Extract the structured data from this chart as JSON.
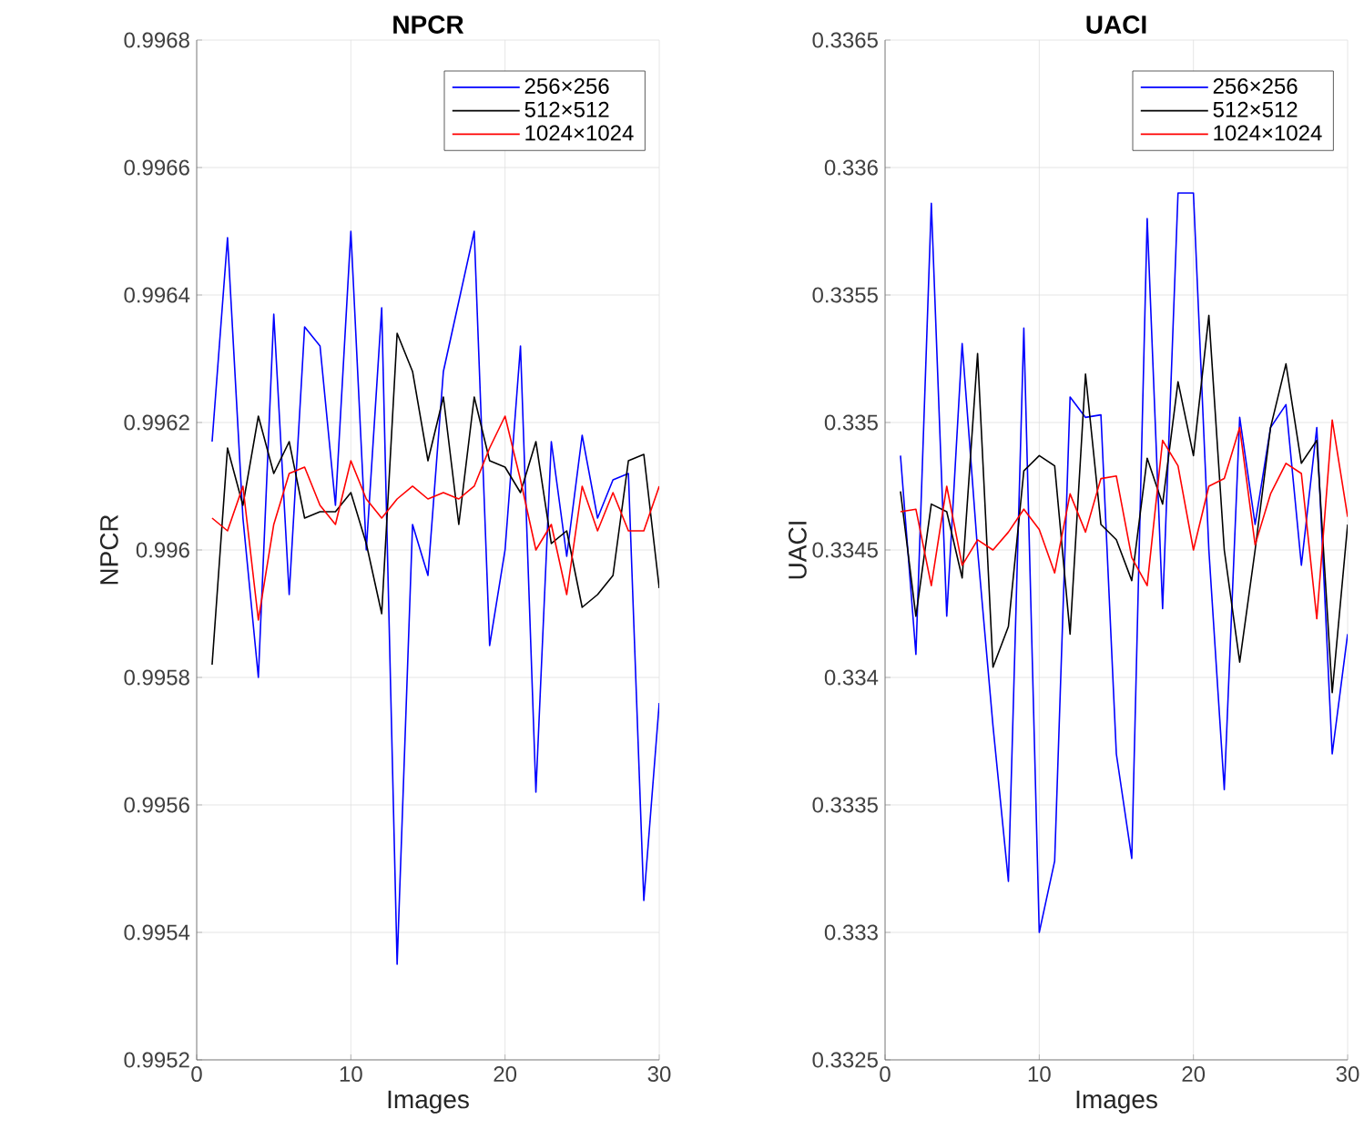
{
  "chart_data": [
    {
      "type": "line",
      "title": "NPCR",
      "xlabel": "Images",
      "ylabel": "NPCR",
      "x": [
        1,
        2,
        3,
        4,
        5,
        6,
        7,
        8,
        9,
        10,
        11,
        12,
        13,
        14,
        15,
        16,
        17,
        18,
        19,
        20,
        21,
        22,
        23,
        24,
        25,
        26,
        27,
        28,
        29,
        30
      ],
      "xlim": [
        0,
        30
      ],
      "xticks": [
        0,
        10,
        20,
        30
      ],
      "ylim": [
        0.9952,
        0.9968
      ],
      "yticks": [
        0.9952,
        0.9954,
        0.9956,
        0.9958,
        0.996,
        0.9962,
        0.9964,
        0.9966,
        0.9968
      ],
      "grid": true,
      "legend": "top right",
      "series": [
        {
          "name": "256×256",
          "color": "#0000ff",
          "values": [
            0.99617,
            0.99649,
            0.99605,
            0.9958,
            0.99637,
            0.99593,
            0.99635,
            0.99632,
            0.99607,
            0.9965,
            0.996,
            0.99638,
            0.99535,
            0.99604,
            0.99596,
            0.99628,
            0.99639,
            0.9965,
            0.99585,
            0.996,
            0.99632,
            0.99562,
            0.99617,
            0.99599,
            0.99618,
            0.99605,
            0.99611,
            0.99612,
            0.99545,
            0.99576
          ]
        },
        {
          "name": "512×512",
          "color": "#000000",
          "values": [
            0.99582,
            0.99616,
            0.99607,
            0.99621,
            0.99612,
            0.99617,
            0.99605,
            0.99606,
            0.99606,
            0.99609,
            0.99601,
            0.9959,
            0.99634,
            0.99628,
            0.99614,
            0.99624,
            0.99604,
            0.99624,
            0.99614,
            0.99613,
            0.99609,
            0.99617,
            0.99601,
            0.99603,
            0.99591,
            0.99593,
            0.99596,
            0.99614,
            0.99615,
            0.99594
          ]
        },
        {
          "name": "1024×1024",
          "color": "#ff0000",
          "values": [
            0.99605,
            0.99603,
            0.9961,
            0.99589,
            0.99604,
            0.99612,
            0.99613,
            0.99607,
            0.99604,
            0.99614,
            0.99608,
            0.99605,
            0.99608,
            0.9961,
            0.99608,
            0.99609,
            0.99608,
            0.9961,
            0.99616,
            0.99621,
            0.99611,
            0.996,
            0.99604,
            0.99593,
            0.9961,
            0.99603,
            0.99609,
            0.99603,
            0.99603,
            0.9961
          ]
        }
      ]
    },
    {
      "type": "line",
      "title": "UACI",
      "xlabel": "Images",
      "ylabel": "UACI",
      "x": [
        1,
        2,
        3,
        4,
        5,
        6,
        7,
        8,
        9,
        10,
        11,
        12,
        13,
        14,
        15,
        16,
        17,
        18,
        19,
        20,
        21,
        22,
        23,
        24,
        25,
        26,
        27,
        28,
        29,
        30
      ],
      "xlim": [
        0,
        30
      ],
      "xticks": [
        0,
        10,
        20,
        30
      ],
      "ylim": [
        0.3325,
        0.3365
      ],
      "yticks": [
        0.3325,
        0.333,
        0.3335,
        0.334,
        0.3345,
        0.335,
        0.3355,
        0.336,
        0.3365
      ],
      "grid": true,
      "legend": "top right",
      "series": [
        {
          "name": "256×256",
          "color": "#0000ff",
          "values": [
            0.33487,
            0.33409,
            0.33586,
            0.33424,
            0.33531,
            0.3345,
            0.33381,
            0.3332,
            0.33537,
            0.333,
            0.33328,
            0.3351,
            0.33502,
            0.33503,
            0.3337,
            0.33329,
            0.3358,
            0.33427,
            0.3359,
            0.3359,
            0.3345,
            0.33356,
            0.33502,
            0.3346,
            0.33498,
            0.33507,
            0.33444,
            0.33498,
            0.3337,
            0.33417
          ]
        },
        {
          "name": "512×512",
          "color": "#000000",
          "values": [
            0.33473,
            0.33424,
            0.33468,
            0.33465,
            0.33439,
            0.33527,
            0.33404,
            0.3342,
            0.33481,
            0.33487,
            0.33483,
            0.33417,
            0.33519,
            0.3346,
            0.33454,
            0.33438,
            0.33486,
            0.33468,
            0.33516,
            0.33487,
            0.33542,
            0.3345,
            0.33406,
            0.3345,
            0.33498,
            0.33523,
            0.33484,
            0.33493,
            0.33394,
            0.3346
          ]
        },
        {
          "name": "1024×1024",
          "color": "#ff0000",
          "values": [
            0.33465,
            0.33466,
            0.33436,
            0.33475,
            0.33444,
            0.33454,
            0.3345,
            0.33457,
            0.33466,
            0.33458,
            0.33441,
            0.33472,
            0.33457,
            0.33478,
            0.33479,
            0.33447,
            0.33436,
            0.33493,
            0.33483,
            0.3345,
            0.33475,
            0.33478,
            0.33498,
            0.33452,
            0.33472,
            0.33484,
            0.3348,
            0.33423,
            0.33501,
            0.33463
          ]
        }
      ]
    }
  ]
}
